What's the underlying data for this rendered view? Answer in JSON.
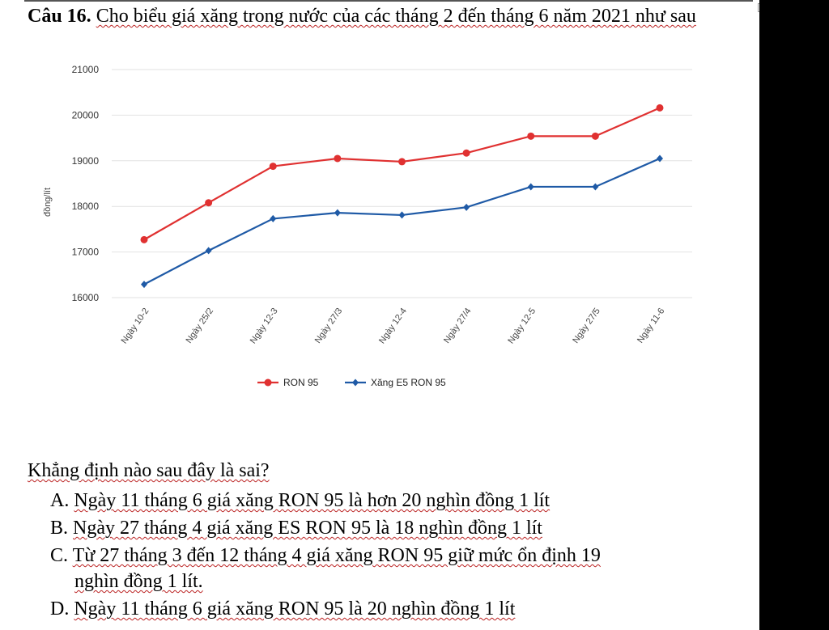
{
  "question": {
    "number": "Câu 16.",
    "text": "Cho biểu giá xăng trong nước của các tháng 2 đến tháng 6 năm 2021 như sau"
  },
  "chart_data": {
    "type": "line",
    "ylabel": "đồng/lít",
    "ylim": [
      16000,
      21000
    ],
    "yticks": [
      "16000",
      "17000",
      "18000",
      "19000",
      "20000",
      "21000"
    ],
    "categories": [
      "Ngày 10-2",
      "Ngày 25/2",
      "Ngày 12-3",
      "Ngày 27/3",
      "Ngày 12-4",
      "Ngày 27/4",
      "Ngày 12-5",
      "Ngày 27/5",
      "Ngày 11-6"
    ],
    "series": [
      {
        "name": "RON 95",
        "color": "#e03131",
        "marker": "circle",
        "values": [
          17270,
          18080,
          18880,
          19050,
          18980,
          19170,
          19540,
          19540,
          20160
        ]
      },
      {
        "name": "Xăng E5 RON 95",
        "color": "#1f5aa6",
        "marker": "diamond",
        "values": [
          16290,
          17030,
          17730,
          17860,
          17810,
          17980,
          18430,
          18430,
          19050
        ]
      }
    ],
    "grid": true,
    "legend": "bottom"
  },
  "prompt": "Khẳng định nào sau đây là sai?",
  "options": [
    {
      "label": "A.",
      "text": "Ngày 11 tháng 6 giá xăng RON 95 là hơn 20 nghìn đồng 1 lít"
    },
    {
      "label": "B.",
      "text": "Ngày 27 tháng 4 giá xăng ES RON 95 là 18 nghìn đồng 1 lít"
    },
    {
      "label": "C.",
      "text": "Từ 27 tháng 3 đến 12 tháng 4 giá xăng RON 95 giữ mức ổn định 19",
      "text2": "nghìn đồng 1 lít."
    },
    {
      "label": "D.",
      "text": "Ngày 11 tháng 6 giá xăng RON 95 là 20 nghìn đồng 1 lít"
    }
  ]
}
